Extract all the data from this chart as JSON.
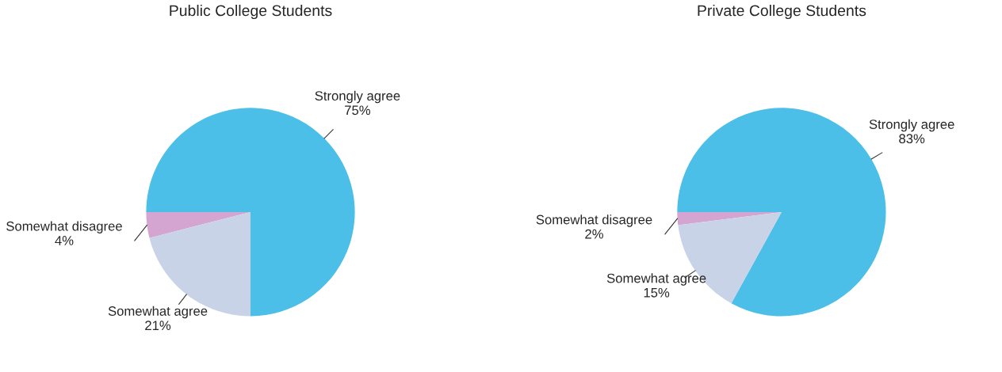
{
  "chart_data": [
    {
      "type": "pie",
      "title": "Public College Students",
      "categories": [
        "Strongly agree",
        "Somewhat disagree",
        "Somewhat agree"
      ],
      "values": [
        75,
        4,
        21
      ],
      "value_labels": [
        "75%",
        "4%",
        "21%"
      ],
      "colors": [
        "#4bbfe8",
        "#d4a5d0",
        "#c8d3e8"
      ]
    },
    {
      "type": "pie",
      "title": "Private College Students",
      "categories": [
        "Strongly agree",
        "Somewhat disagree",
        "Somewhat agree"
      ],
      "values": [
        83,
        2,
        15
      ],
      "value_labels": [
        "83%",
        "2%",
        "15%"
      ],
      "colors": [
        "#4bbfe8",
        "#d4a5d0",
        "#c8d3e8"
      ]
    }
  ]
}
